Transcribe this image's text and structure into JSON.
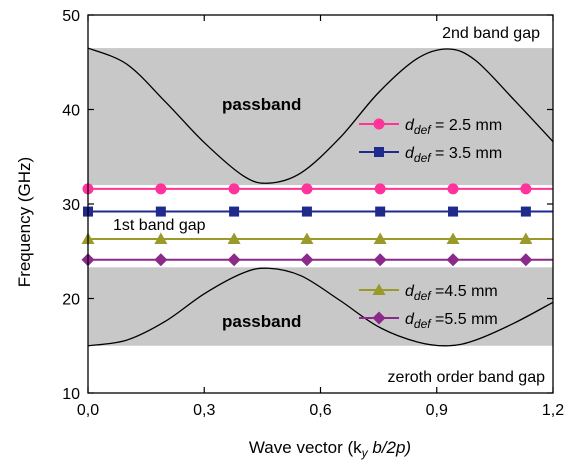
{
  "chart_data": {
    "type": "line",
    "xlabel": "Wave vector (k",
    "xlabel_sub": "y",
    "xlabel_tail": " b/2p)",
    "ylabel": "Frequency (GHz)",
    "xlim": [
      0.0,
      1.2
    ],
    "ylim": [
      10,
      50
    ],
    "x_ticks": [
      0.0,
      0.3,
      0.6,
      0.9,
      1.2
    ],
    "x_tick_labels": [
      "0,0",
      "0,3",
      "0,6",
      "0,9",
      "1,2"
    ],
    "y_ticks": [
      10,
      20,
      30,
      40,
      50
    ],
    "y_tick_labels": [
      "10",
      "20",
      "30",
      "40",
      "50"
    ],
    "shaded_bands": [
      {
        "y_from": 32.0,
        "y_to": 46.5,
        "color": "#c8c8c8"
      },
      {
        "y_from": 15.0,
        "y_to": 23.3,
        "color": "#c8c8c8"
      }
    ],
    "band_curves": {
      "upper": {
        "x": [
          0.0,
          0.1,
          0.2,
          0.3,
          0.4,
          0.465,
          0.55,
          0.65,
          0.75,
          0.85,
          0.93,
          1.0,
          1.1,
          1.2
        ],
        "y": [
          46.5,
          44.8,
          40.8,
          36.5,
          33.0,
          32.2,
          33.3,
          37.0,
          41.8,
          45.4,
          46.4,
          45.2,
          41.0,
          36.6
        ]
      },
      "lower": {
        "x": [
          0.0,
          0.1,
          0.2,
          0.3,
          0.4,
          0.465,
          0.55,
          0.65,
          0.75,
          0.85,
          0.93,
          1.0,
          1.1,
          1.2
        ],
        "y": [
          15.0,
          15.6,
          17.6,
          20.5,
          22.7,
          23.2,
          22.4,
          19.8,
          17.0,
          15.4,
          15.0,
          15.6,
          17.4,
          19.6
        ]
      }
    },
    "series": [
      {
        "label_sym": "d",
        "label_sub": "def",
        "label_tail": " = 2.5 mm",
        "color": "#ff3399",
        "marker": "circle",
        "x": [
          0.0,
          0.188,
          0.377,
          0.565,
          0.754,
          0.942,
          1.13
        ],
        "y": [
          31.6,
          31.6,
          31.6,
          31.6,
          31.6,
          31.6,
          31.6
        ]
      },
      {
        "label_sym": "d",
        "label_sub": "def",
        "label_tail": " = 3.5 mm",
        "color": "#1f2a8c",
        "marker": "square",
        "x": [
          0.0,
          0.188,
          0.377,
          0.565,
          0.754,
          0.942,
          1.13
        ],
        "y": [
          29.2,
          29.2,
          29.2,
          29.2,
          29.2,
          29.2,
          29.2
        ]
      },
      {
        "label_sym": "d",
        "label_sub": "def",
        "label_tail": " =4.5 mm",
        "color": "#9a9a2a",
        "marker": "triangle",
        "x": [
          0.0,
          0.188,
          0.377,
          0.565,
          0.754,
          0.942,
          1.13
        ],
        "y": [
          26.3,
          26.3,
          26.3,
          26.3,
          26.3,
          26.3,
          26.3
        ]
      },
      {
        "label_sym": "d",
        "label_sub": "def",
        "label_tail": " =5.5 mm",
        "color": "#8b2a8b",
        "marker": "diamond",
        "x": [
          0.0,
          0.188,
          0.377,
          0.565,
          0.754,
          0.942,
          1.13
        ],
        "y": [
          24.1,
          24.1,
          24.1,
          24.1,
          24.1,
          24.1,
          24.1
        ]
      }
    ],
    "annotations": {
      "second_gap": "2nd band gap",
      "passband_upper": "passband",
      "first_gap": "1st band gap",
      "passband_lower": "passband",
      "zeroth_gap": "zeroth order band gap"
    },
    "grid": false,
    "legend_placement": "inside"
  }
}
